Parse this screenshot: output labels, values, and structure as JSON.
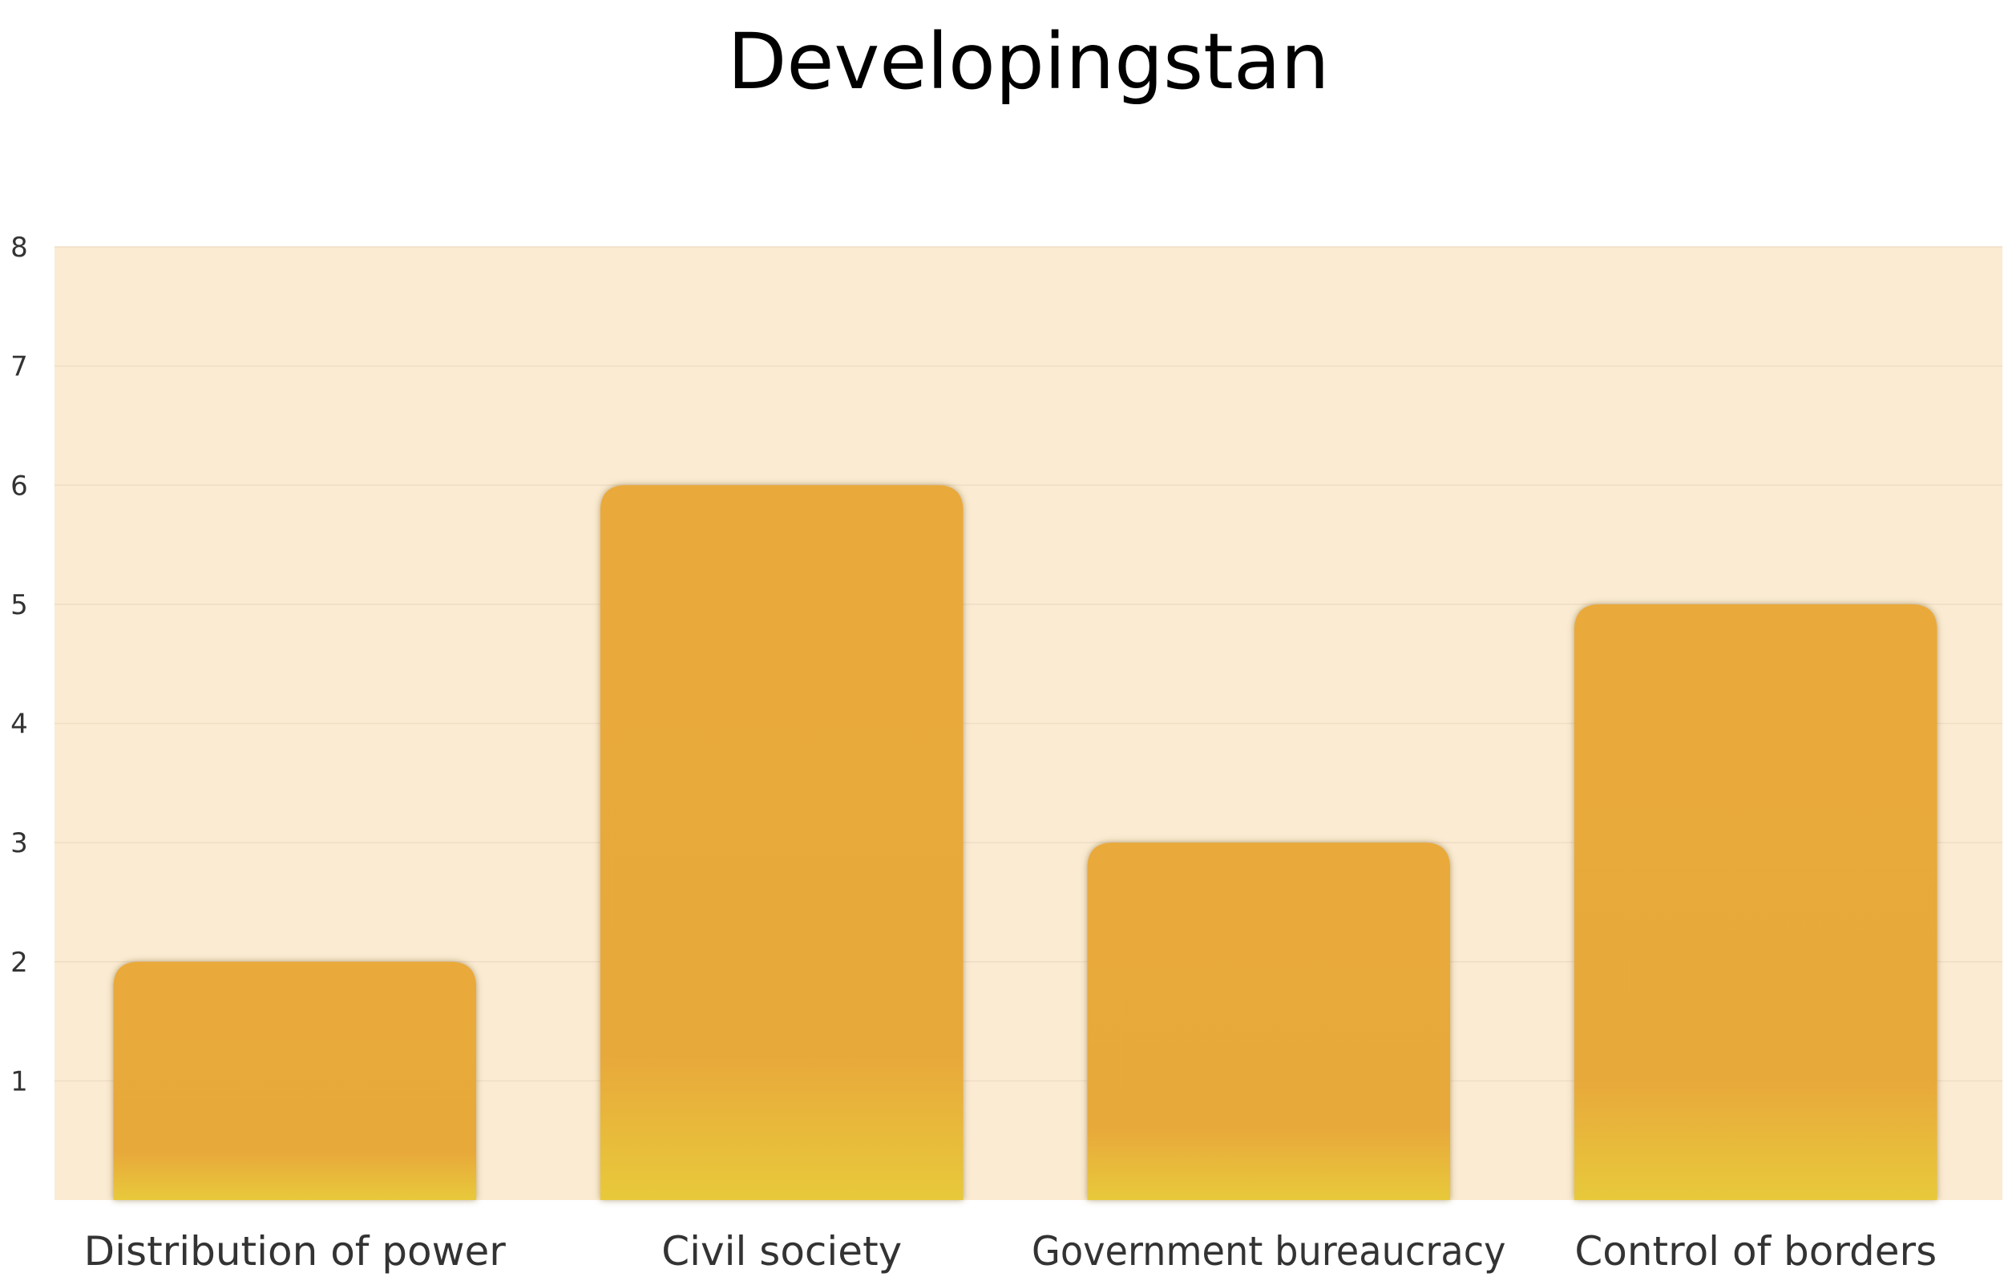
{
  "chart_data": {
    "type": "bar",
    "title": "Developingstan",
    "categories": [
      "Distribution of power",
      "Civil society",
      "Government bureaucracy",
      "Control of borders"
    ],
    "values": [
      2,
      6,
      3,
      5
    ],
    "xlabel": "",
    "ylabel": "",
    "ylim": [
      0,
      8
    ],
    "yticks": [
      "1",
      "2",
      "3",
      "4",
      "5",
      "6",
      "7",
      "8"
    ],
    "grid": true,
    "legend": "none",
    "colors": {
      "plot_background": "#FAEBD2",
      "bar_top": "#E9AA3A",
      "bar_bottom": "#E8C93A",
      "gridline": "#EFDDC4",
      "text": "#333333"
    }
  }
}
